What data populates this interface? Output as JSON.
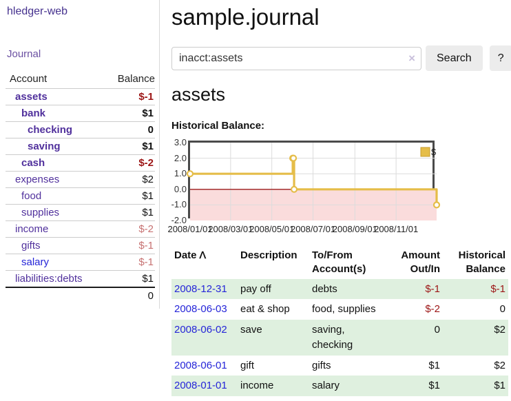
{
  "colors": {
    "accent_purple": "#50309c",
    "link_blue": "#2525d8",
    "negative_strong": "#9c1515",
    "negative_soft": "#c77272",
    "row_green": "#dff0df",
    "chart_gold": "#e5bd49",
    "chart_gold_dark": "#c79b2c",
    "chart_pink": "#fadcdc",
    "chart_zero_red": "#9b1c1c",
    "chart_grid": "#dcdcdc",
    "chart_border": "#4a4a4a"
  },
  "sidebar": {
    "brand": "hledger-web",
    "nav_journal": "Journal",
    "accounts_table": {
      "headers": [
        "Account",
        "Balance"
      ],
      "rows": [
        {
          "name": "assets",
          "balance": "$-1",
          "level": 1,
          "bold": true,
          "name_color": "purple",
          "balance_tone": "neg-strong"
        },
        {
          "name": "bank",
          "balance": "$1",
          "level": 2,
          "bold": true,
          "name_color": "purple",
          "balance_tone": "normal"
        },
        {
          "name": "checking",
          "balance": "0",
          "level": 3,
          "bold": true,
          "name_color": "purple",
          "balance_tone": "normal"
        },
        {
          "name": "saving",
          "balance": "$1",
          "level": 3,
          "bold": true,
          "name_color": "purple",
          "balance_tone": "normal"
        },
        {
          "name": "cash",
          "balance": "$-2",
          "level": 2,
          "bold": true,
          "name_color": "purple",
          "balance_tone": "neg-strong"
        },
        {
          "name": "expenses",
          "balance": "$2",
          "level": 1,
          "bold": false,
          "name_color": "purple",
          "balance_tone": "normal"
        },
        {
          "name": "food",
          "balance": "$1",
          "level": 2,
          "bold": false,
          "name_color": "purple",
          "balance_tone": "normal"
        },
        {
          "name": "supplies",
          "balance": "$1",
          "level": 2,
          "bold": false,
          "name_color": "purple",
          "balance_tone": "normal"
        },
        {
          "name": "income",
          "balance": "$-2",
          "level": 1,
          "bold": false,
          "name_color": "purple",
          "balance_tone": "neg-soft"
        },
        {
          "name": "gifts",
          "balance": "$-1",
          "level": 2,
          "bold": false,
          "name_color": "purple",
          "balance_tone": "neg-soft"
        },
        {
          "name": "salary",
          "balance": "$-1",
          "level": 2,
          "bold": false,
          "name_color": "blue",
          "balance_tone": "neg-soft"
        },
        {
          "name": "liabilities:debts",
          "balance": "$1",
          "level": 1,
          "bold": false,
          "name_color": "purple",
          "balance_tone": "normal"
        }
      ],
      "total": "0"
    }
  },
  "header": {
    "title": "sample.journal"
  },
  "search": {
    "value": "inacct:assets",
    "clear_icon": "×",
    "search_button": "Search",
    "help_button": "?"
  },
  "account_page": {
    "heading": "assets",
    "section_label": "Historical Balance:"
  },
  "chart_data": {
    "type": "line",
    "step": true,
    "title": "Historical Balance",
    "series": [
      {
        "name": "$",
        "color": "#e5bd49",
        "points": [
          [
            "2008-01-01",
            1
          ],
          [
            "2008-06-01",
            2
          ],
          [
            "2008-06-02",
            2
          ],
          [
            "2008-06-03",
            0
          ],
          [
            "2008-12-31",
            -1
          ]
        ]
      }
    ],
    "x_domain": [
      "2008-01-01",
      "2008-12-31"
    ],
    "x_ticks": [
      "2008/01/01",
      "2008/03/01",
      "2008/05/01",
      "2008/07/01",
      "2008/09/01",
      "2008/11/01"
    ],
    "y_ticks": [
      "3.0",
      "2.0",
      "1.0",
      "0.0",
      "-1.0",
      "-2.0"
    ],
    "ylim": [
      -2,
      3
    ],
    "grid": true,
    "legend": {
      "label": "$",
      "position": "top-right"
    },
    "negative_region_fill": "#fadcdc",
    "zero_line_color": "#9b1c1c"
  },
  "register": {
    "sort_icon": "ᐱ",
    "headers": [
      "Date",
      "Description",
      "To/From Account(s)",
      "Amount Out/In",
      "Historical Balance"
    ],
    "rows": [
      {
        "date": "2008-12-31",
        "description": "pay off",
        "accounts": "debts",
        "amount": "$-1",
        "amount_negative": true,
        "balance": "$-1",
        "balance_negative": true,
        "green": true
      },
      {
        "date": "2008-06-03",
        "description": "eat & shop",
        "accounts": "food, supplies",
        "amount": "$-2",
        "amount_negative": true,
        "balance": "0",
        "balance_negative": false,
        "green": false
      },
      {
        "date": "2008-06-02",
        "description": "save",
        "accounts": "saving, checking",
        "amount": "0",
        "amount_negative": false,
        "balance": "$2",
        "balance_negative": false,
        "green": true
      },
      {
        "date": "2008-06-01",
        "description": "gift",
        "accounts": "gifts",
        "amount": "$1",
        "amount_negative": false,
        "balance": "$2",
        "balance_negative": false,
        "green": false
      },
      {
        "date": "2008-01-01",
        "description": "income",
        "accounts": "salary",
        "amount": "$1",
        "amount_negative": false,
        "balance": "$1",
        "balance_negative": false,
        "green": true
      }
    ]
  }
}
